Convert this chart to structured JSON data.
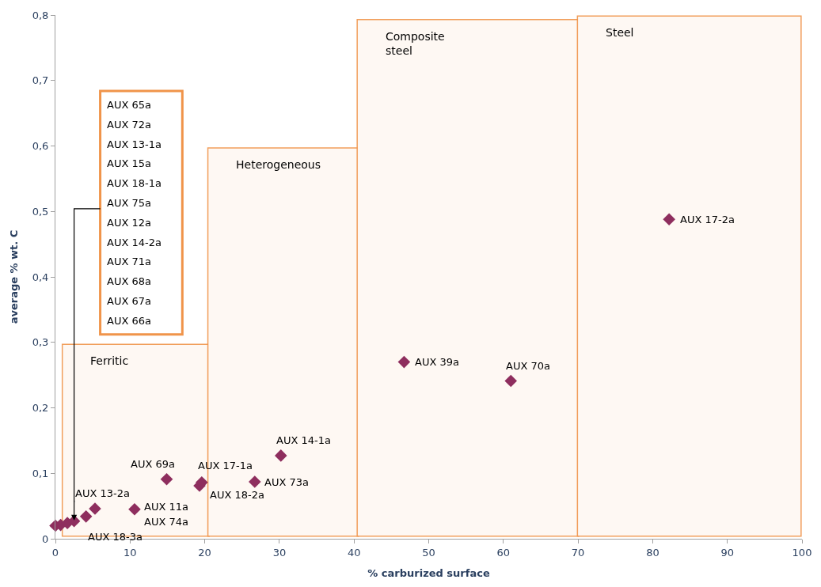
{
  "chart_data": {
    "type": "scatter",
    "xlabel": "% carburized surface",
    "ylabel": "average % wt. C",
    "series": [
      {
        "color": "#8e2e5e",
        "marker": "diamond",
        "x": [
          0,
          0.7,
          1.6,
          2.5,
          4.1,
          5.3,
          10.6,
          14.9,
          19.3,
          19.6,
          26.7,
          30.2,
          46.7,
          61.0,
          82.2
        ],
        "values": [
          0.02,
          0.021,
          0.024,
          0.027,
          0.034,
          0.046,
          0.045,
          0.091,
          0.081,
          0.086,
          0.087,
          0.127,
          0.27,
          0.241,
          0.488
        ]
      }
    ],
    "bands": [
      {
        "axis": "x",
        "from": 1,
        "to": 20.5,
        "label": "Ferritic",
        "color": "#f0944a"
      },
      {
        "axis": "x",
        "from": 20.5,
        "to": 40.5,
        "label": "Heterogeneous",
        "color": "#f0944a"
      },
      {
        "axis": "x",
        "from": 40.5,
        "to": 70,
        "label": "Composite\nsteel",
        "color": "#f0944a"
      },
      {
        "axis": "x",
        "from": 70,
        "to": 99.8,
        "label": "Steel",
        "color": "#f0944a"
      }
    ],
    "annotations": [
      "AUX 65a",
      "AUX 72a",
      "AUX 13-1a",
      "AUX 15a",
      "AUX 18-1a",
      "AUX 75a",
      "AUX 12a",
      "AUX 14-2a",
      "AUX 71a",
      "AUX 68a",
      "AUX 67a",
      "AUX 66a",
      {
        "text": "AUX 69a",
        "x": 14.9,
        "y": 0.091
      },
      {
        "text": "AUX 17-1a",
        "x": 19.3,
        "y": 0.081
      },
      {
        "text": "AUX 18-2a",
        "x": 19.6,
        "y": 0.086
      },
      {
        "text": "AUX 14-1a",
        "x": 30.2,
        "y": 0.127
      },
      {
        "text": "AUX 73a",
        "x": 26.7,
        "y": 0.087
      },
      {
        "text": "AUX 13-2a",
        "x": 5.3,
        "y": 0.046
      },
      {
        "text": "AUX 11a",
        "x": 10.6,
        "y": 0.045
      },
      {
        "text": "AUX 74a",
        "x": 10.6,
        "y": 0.045
      },
      {
        "text": "AUX 18-3a",
        "x": 4.1,
        "y": 0.034
      },
      {
        "text": "AUX 39a",
        "x": 46.7,
        "y": 0.27
      },
      {
        "text": "AUX 70a",
        "x": 61.0,
        "y": 0.241
      },
      {
        "text": "AUX 17-2a",
        "x": 82.2,
        "y": 0.488
      }
    ],
    "xlim": [
      0,
      100
    ],
    "xticks": [
      0,
      10,
      20,
      30,
      40,
      50,
      60,
      70,
      80,
      90,
      100
    ],
    "ylim": [
      0,
      0.8
    ],
    "yticks": [
      0,
      {
        "value": 0.1,
        "label": "0,1"
      },
      {
        "value": 0.2,
        "label": "0,2"
      },
      {
        "value": 0.3,
        "label": "0,3"
      },
      {
        "value": 0.4,
        "label": "0,4"
      },
      {
        "value": 0.5,
        "label": "0,5"
      },
      {
        "value": 0.6,
        "label": "0,6"
      },
      {
        "value": 0.7,
        "label": "0,7"
      },
      {
        "value": 0.8,
        "label": "0,8"
      }
    ],
    "grid": false,
    "legend": false
  }
}
